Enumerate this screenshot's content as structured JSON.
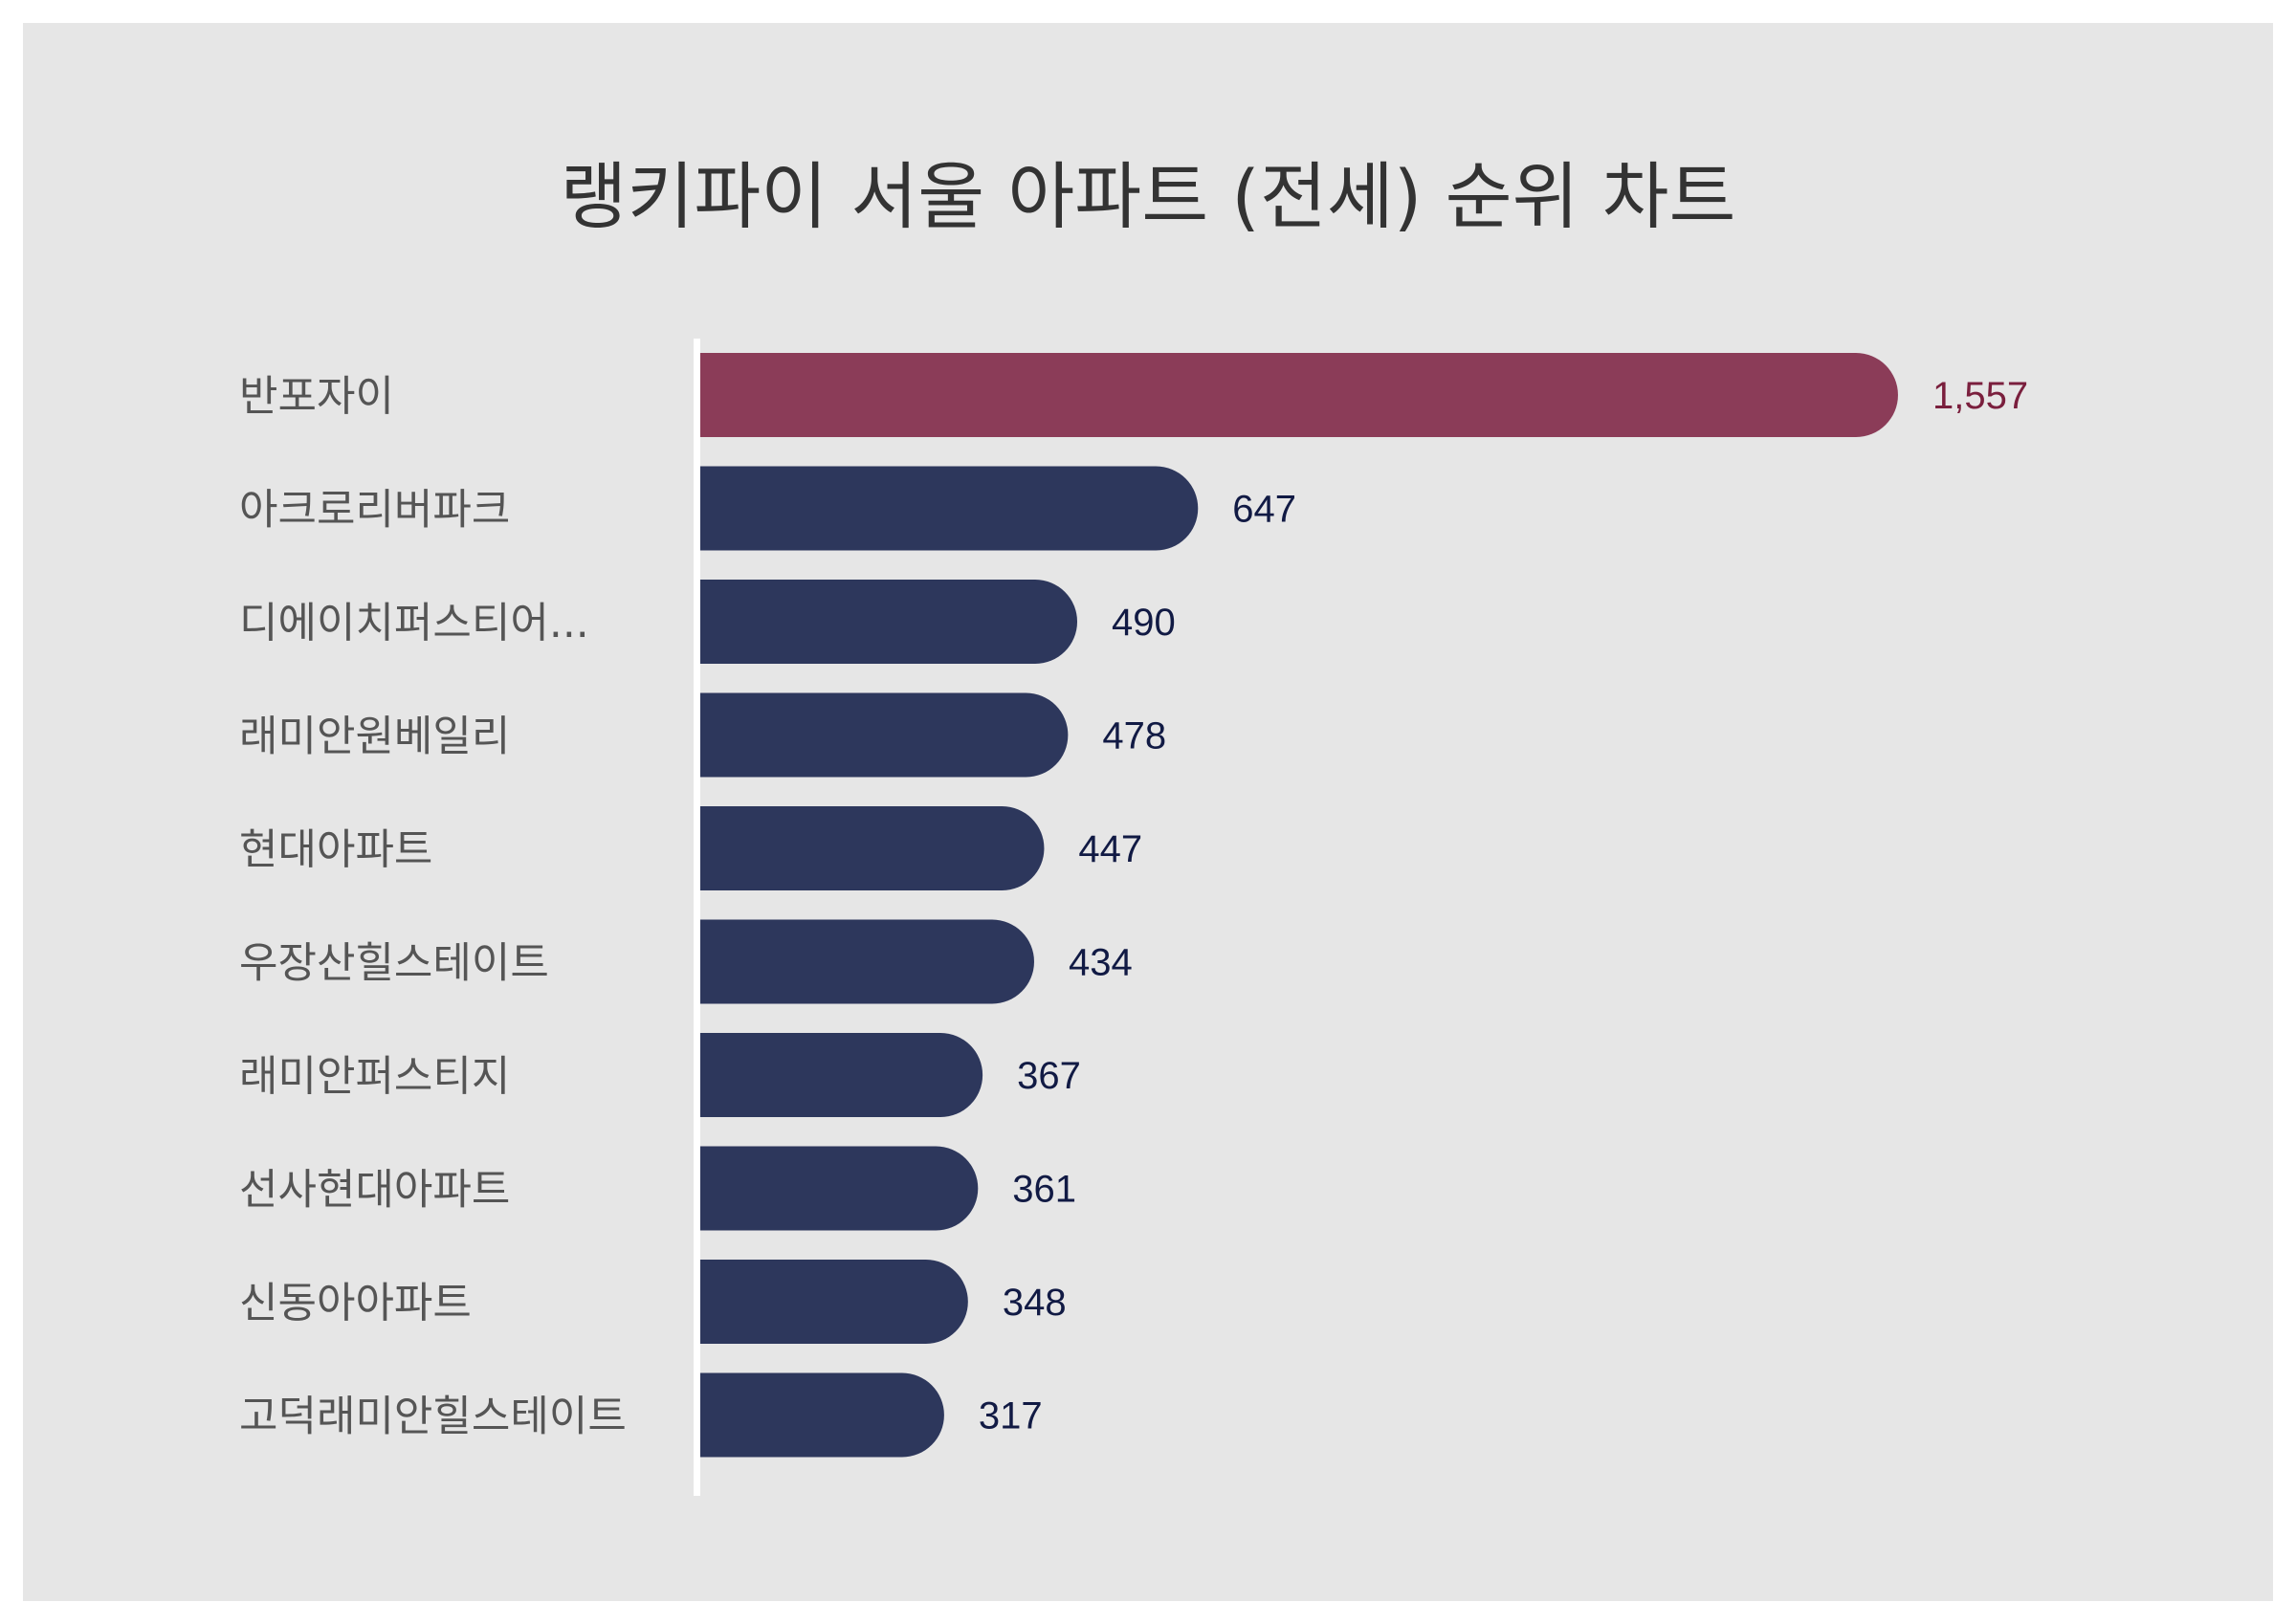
{
  "chart_data": {
    "type": "bar",
    "orientation": "horizontal",
    "title": "랭키파이 서울 아파트 (전세) 순위 차트",
    "categories": [
      "반포자이",
      "아크로리버파크",
      "디에이치퍼스티어...",
      "래미안원베일리",
      "현대아파트",
      "우장산힐스테이트",
      "래미안퍼스티지",
      "선사현대아파트",
      "신동아아파트",
      "고덕래미안힐스테이트"
    ],
    "values": [
      1557,
      647,
      490,
      478,
      447,
      434,
      367,
      361,
      348,
      317
    ],
    "value_labels": [
      "1,557",
      "647",
      "490",
      "478",
      "447",
      "434",
      "367",
      "361",
      "348",
      "317"
    ],
    "xlim": [
      0,
      1557
    ],
    "grid": false,
    "legend": "none",
    "colors": {
      "highlight_bar": "#8b3c58",
      "highlight_label": "#7a1f3d",
      "bar": "#2d375c",
      "value_label": "#111a44",
      "axis_line": "#ffffff",
      "background": "#e6e6e6"
    }
  }
}
